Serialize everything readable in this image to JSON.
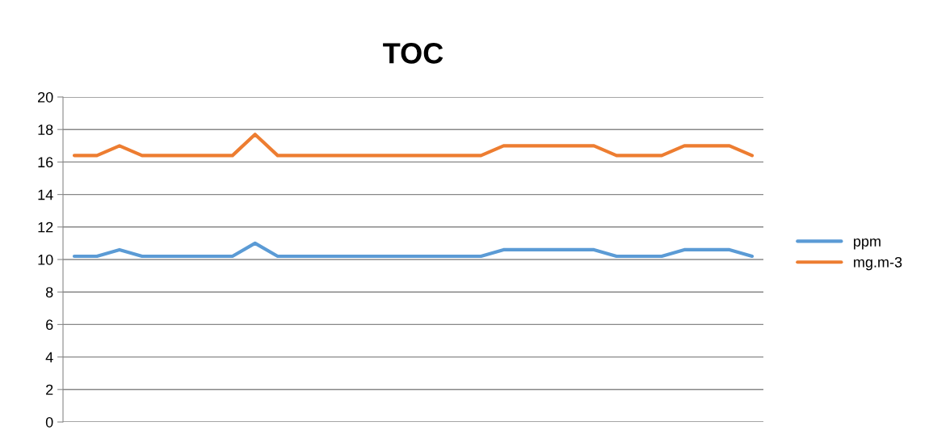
{
  "chart_data": {
    "type": "line",
    "title": "TOC",
    "categories": [
      null,
      null,
      null,
      null,
      null,
      null,
      null,
      null,
      null,
      null,
      null,
      null,
      null,
      null,
      null,
      null,
      null,
      null,
      null,
      null,
      null,
      null,
      null,
      null,
      null,
      null,
      null,
      null,
      null,
      null,
      null
    ],
    "series": [
      {
        "name": "ppm",
        "color": "#5b9bd5",
        "values": [
          10.2,
          10.2,
          10.6,
          10.2,
          10.2,
          10.2,
          10.2,
          10.2,
          11.0,
          10.2,
          10.2,
          10.2,
          10.2,
          10.2,
          10.2,
          10.2,
          10.2,
          10.2,
          10.2,
          10.6,
          10.6,
          10.6,
          10.6,
          10.6,
          10.2,
          10.2,
          10.2,
          10.6,
          10.6,
          10.6,
          10.2
        ]
      },
      {
        "name": "mg.m-3",
        "color": "#ed7d31",
        "values": [
          16.4,
          16.4,
          17.0,
          16.4,
          16.4,
          16.4,
          16.4,
          16.4,
          17.7,
          16.4,
          16.4,
          16.4,
          16.4,
          16.4,
          16.4,
          16.4,
          16.4,
          16.4,
          16.4,
          17.0,
          17.0,
          17.0,
          17.0,
          17.0,
          16.4,
          16.4,
          16.4,
          17.0,
          17.0,
          17.0,
          16.4
        ]
      }
    ],
    "ylim": [
      0,
      20
    ],
    "yticks": [
      0,
      2,
      4,
      6,
      8,
      10,
      12,
      14,
      16,
      18,
      20
    ],
    "grid": "y",
    "legend": "right",
    "marker": "none",
    "line_style": "solid"
  }
}
